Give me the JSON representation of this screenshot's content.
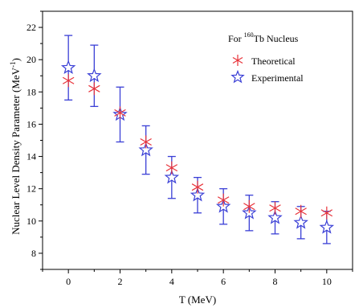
{
  "chart_data": {
    "type": "scatter",
    "ylabel_main": "Nuclear Level Density Parameter (MeV",
    "ylabel_exp": "-1",
    "ylabel_close": ")",
    "xlabel": "T (MeV)",
    "annotation": {
      "prefix": "For ",
      "superscript": "160",
      "suffix": "Tb Nucleus"
    },
    "xlim": [
      -1,
      11
    ],
    "ylim": [
      7,
      23
    ],
    "x_ticks": [
      0,
      2,
      4,
      6,
      8,
      10
    ],
    "y_ticks": [
      8,
      10,
      12,
      14,
      16,
      18,
      20,
      22
    ],
    "legend_position": "top-right",
    "series": [
      {
        "name": "Theoretical",
        "marker": "asterisk",
        "color": "#e8333a",
        "x": [
          0,
          1,
          2,
          3,
          4,
          5,
          6,
          7,
          8,
          9,
          10
        ],
        "y": [
          18.7,
          18.2,
          16.7,
          14.9,
          13.3,
          12.1,
          11.3,
          10.9,
          10.8,
          10.6,
          10.5
        ]
      },
      {
        "name": "Experimental",
        "marker": "star-open",
        "color": "#3a3fd6",
        "x": [
          0,
          1,
          2,
          3,
          4,
          5,
          6,
          7,
          8,
          9,
          10
        ],
        "y": [
          19.5,
          19.0,
          16.6,
          14.4,
          12.7,
          11.6,
          10.9,
          10.5,
          10.2,
          9.9,
          9.6
        ],
        "err": [
          2.0,
          1.9,
          1.7,
          1.5,
          1.3,
          1.1,
          1.1,
          1.1,
          1.0,
          1.0,
          1.0
        ]
      }
    ]
  }
}
